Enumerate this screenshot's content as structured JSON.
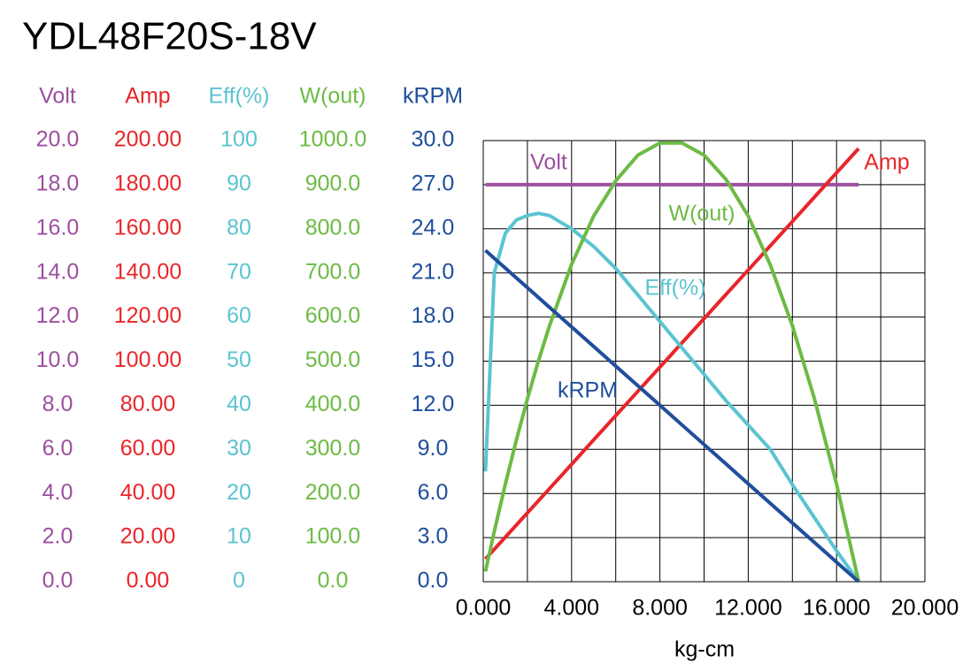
{
  "chart_data": {
    "type": "line",
    "title": "YDL48F20S-18V",
    "xlabel": "kg-cm",
    "grid": true,
    "xlim": [
      0,
      20
    ],
    "xticks": [
      {
        "value": 0,
        "label": "0.000"
      },
      {
        "value": 4,
        "label": "4.000"
      },
      {
        "value": 8,
        "label": "8.000"
      },
      {
        "value": 12,
        "label": "12.000"
      },
      {
        "value": 16,
        "label": "16.000"
      },
      {
        "value": 20,
        "label": "20.000"
      }
    ],
    "x": [
      0.1,
      0.5,
      1,
      1.5,
      2,
      2.5,
      3,
      4,
      5,
      6,
      7,
      8,
      9,
      10,
      11,
      12,
      13,
      14,
      15,
      16,
      17
    ],
    "series": [
      {
        "name": "Volt",
        "color": "#9b4f9f",
        "ylim": [
          0,
          20
        ],
        "yticks": [
          {
            "value": 20,
            "label": "20.0"
          },
          {
            "value": 18,
            "label": "18.0"
          },
          {
            "value": 16,
            "label": "16.0"
          },
          {
            "value": 14,
            "label": "14.0"
          },
          {
            "value": 12,
            "label": "12.0"
          },
          {
            "value": 10,
            "label": "10.0"
          },
          {
            "value": 8,
            "label": "8.0"
          },
          {
            "value": 6,
            "label": "6.0"
          },
          {
            "value": 4,
            "label": "4.0"
          },
          {
            "value": 2,
            "label": "2.0"
          },
          {
            "value": 0,
            "label": "0.0"
          }
        ],
        "values": [
          18,
          18,
          18,
          18,
          18,
          18,
          18,
          18,
          18,
          18,
          18,
          18,
          18,
          18,
          18,
          18,
          18,
          18,
          18,
          18,
          18
        ]
      },
      {
        "name": "Amp",
        "color": "#e8262a",
        "ylim": [
          0,
          200
        ],
        "yticks": [
          {
            "value": 200,
            "label": "200.00"
          },
          {
            "value": 180,
            "label": "180.00"
          },
          {
            "value": 160,
            "label": "160.00"
          },
          {
            "value": 140,
            "label": "140.00"
          },
          {
            "value": 120,
            "label": "120.00"
          },
          {
            "value": 100,
            "label": "100.00"
          },
          {
            "value": 80,
            "label": "80.00"
          },
          {
            "value": 60,
            "label": "60.00"
          },
          {
            "value": 40,
            "label": "40.00"
          },
          {
            "value": 20,
            "label": "20.00"
          },
          {
            "value": 0,
            "label": "0.00"
          }
        ],
        "values": [
          10.3,
          14.7,
          20.2,
          25.7,
          31.2,
          36.7,
          42.2,
          53.2,
          64.3,
          75.3,
          86.3,
          97.3,
          108.3,
          119.3,
          130.3,
          141.3,
          152.3,
          163.3,
          174.4,
          185.4,
          196.4
        ]
      },
      {
        "name": "Eff(%)",
        "color": "#5bc4d1",
        "ylim": [
          0,
          100
        ],
        "yticks": [
          100,
          90,
          80,
          70,
          60,
          50,
          40,
          30,
          20,
          10,
          0
        ],
        "values": [
          25,
          70,
          79,
          82,
          83,
          83.5,
          83,
          80,
          76,
          71,
          65,
          59,
          53,
          47,
          41,
          35.5,
          30,
          22,
          14.5,
          7,
          0
        ]
      },
      {
        "name": "W(out)",
        "color": "#6cbb45",
        "ylim": [
          0,
          1000
        ],
        "yticks": [
          {
            "value": 1000,
            "label": "1000.0"
          },
          {
            "value": 900,
            "label": "900.0"
          },
          {
            "value": 800,
            "label": "800.0"
          },
          {
            "value": 700,
            "label": "700.0"
          },
          {
            "value": 600,
            "label": "600.0"
          },
          {
            "value": 500,
            "label": "500.0"
          },
          {
            "value": 400,
            "label": "400.0"
          },
          {
            "value": 300,
            "label": "300.0"
          },
          {
            "value": 200,
            "label": "200.0"
          },
          {
            "value": 100,
            "label": "100.0"
          },
          {
            "value": 0,
            "label": "0.0"
          }
        ],
        "values": [
          23.3,
          113.9,
          221.0,
          321.2,
          414.4,
          500.8,
          580.1,
          719.3,
          828.8,
          908.6,
          966.9,
          994.4,
          994.4,
          966.9,
          911.6,
          828.8,
          718.2,
          580.1,
          414.4,
          221.0,
          0
        ]
      },
      {
        "name": "kRPM",
        "color": "#1f4e9c",
        "ylim": [
          0,
          30
        ],
        "yticks": [
          {
            "value": 30,
            "label": "30.0"
          },
          {
            "value": 27,
            "label": "27.0"
          },
          {
            "value": 24,
            "label": "24.0"
          },
          {
            "value": 21,
            "label": "21.0"
          },
          {
            "value": 18,
            "label": "18.0"
          },
          {
            "value": 15,
            "label": "15.0"
          },
          {
            "value": 12,
            "label": "12.0"
          },
          {
            "value": 9,
            "label": "9.0"
          },
          {
            "value": 6,
            "label": "6.0"
          },
          {
            "value": 3,
            "label": "3.0"
          },
          {
            "value": 0,
            "label": "0.0"
          }
        ],
        "values": [
          22.53,
          21.99,
          21.33,
          20.66,
          20.0,
          19.33,
          18.66,
          17.33,
          16.0,
          14.66,
          13.33,
          12.0,
          10.66,
          9.33,
          8.0,
          6.66,
          5.33,
          4.0,
          2.67,
          1.33,
          0
        ]
      }
    ]
  }
}
